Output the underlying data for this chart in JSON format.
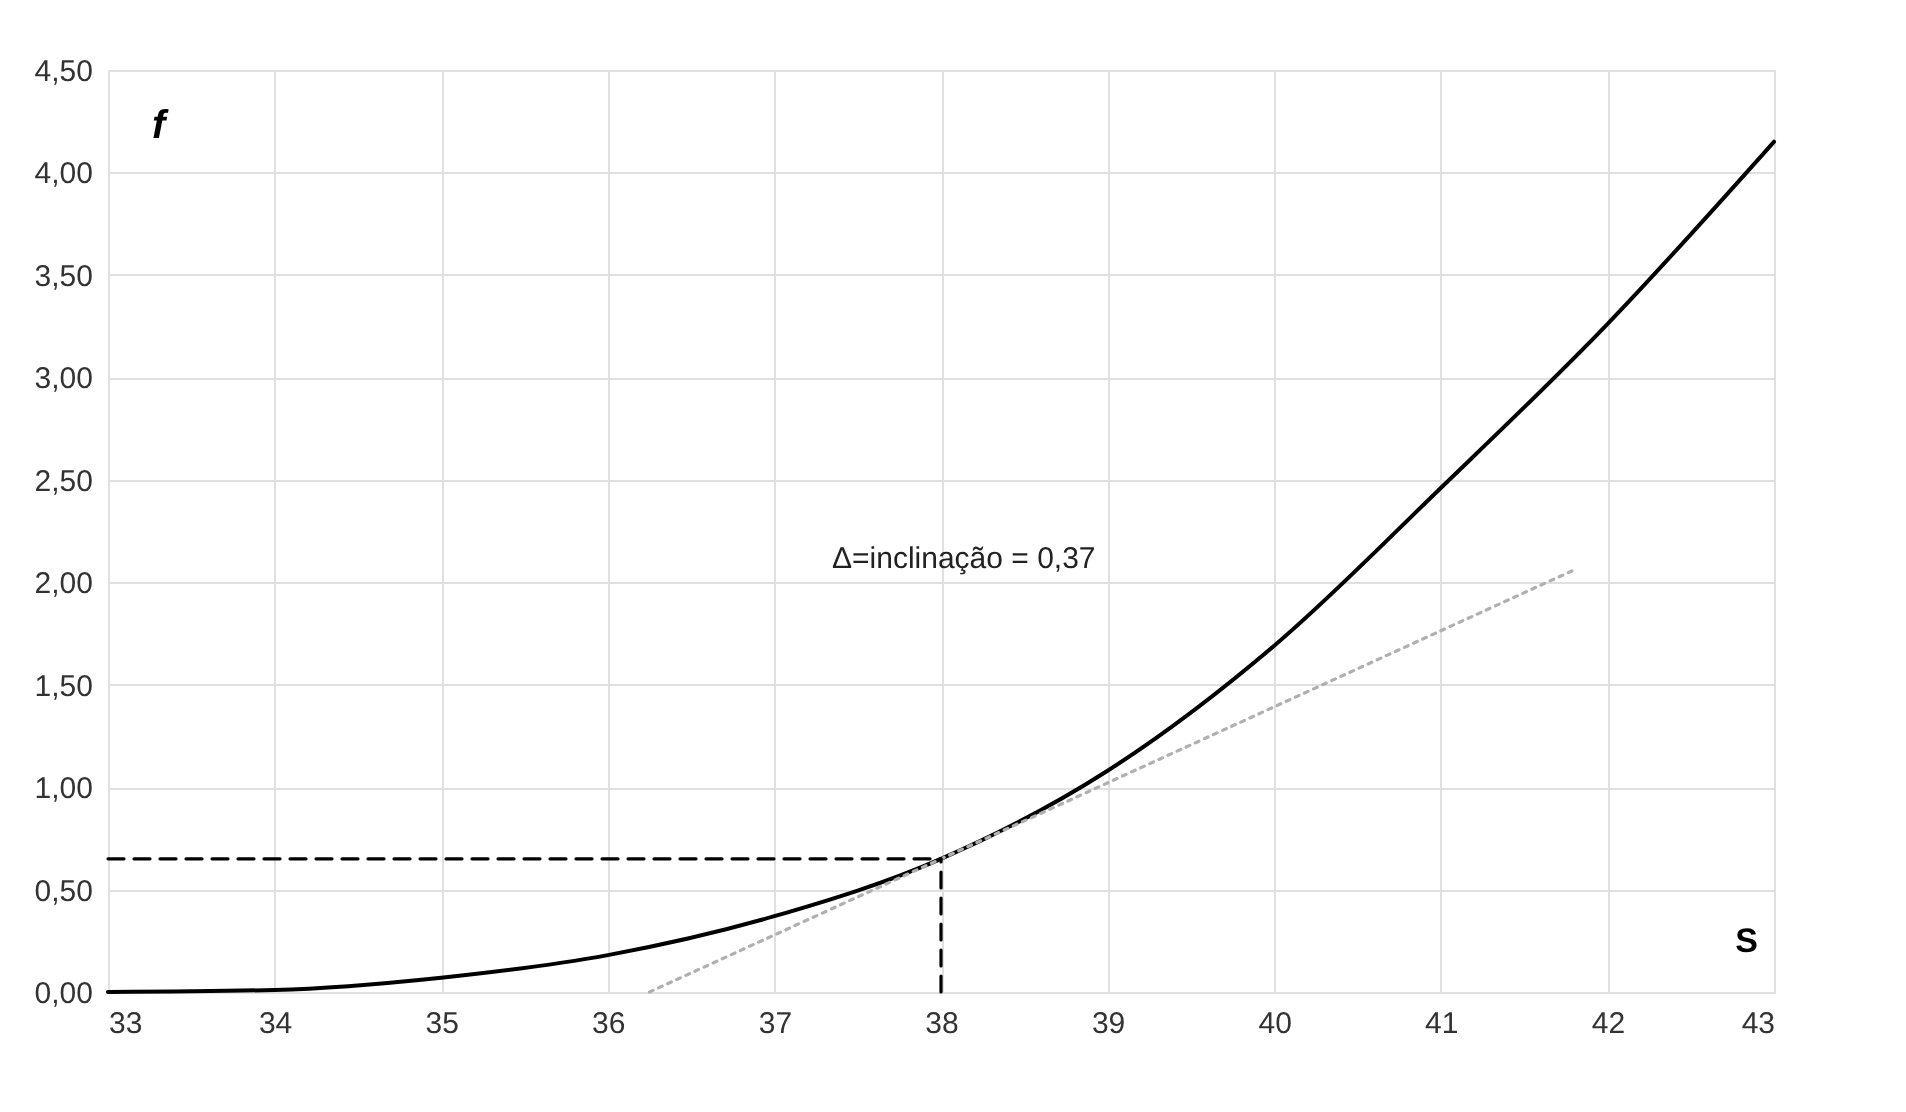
{
  "chart_data": {
    "type": "line",
    "xlabel": "S",
    "ylabel": "f",
    "xlim": [
      33,
      43
    ],
    "xticks": [
      33,
      34,
      35,
      36,
      37,
      38,
      39,
      40,
      41,
      42,
      43
    ],
    "ylim": [
      0,
      4.5
    ],
    "yticks": [
      {
        "value": 0,
        "label": "0,00"
      },
      {
        "value": 0.5,
        "label": "0,50"
      },
      {
        "value": 1,
        "label": "1,00"
      },
      {
        "value": 1.5,
        "label": "1,50"
      },
      {
        "value": 2,
        "label": "2,00"
      },
      {
        "value": 2.5,
        "label": "2,50"
      },
      {
        "value": 3,
        "label": "3,00"
      },
      {
        "value": 3.5,
        "label": "3,50"
      },
      {
        "value": 4,
        "label": "4,00"
      },
      {
        "value": 4.5,
        "label": "4,50"
      }
    ],
    "grid": true,
    "marker": "none",
    "series": [
      {
        "color": "#000000",
        "line_style": "solid",
        "x": [
          33,
          34,
          35,
          36,
          37,
          38,
          39,
          40,
          41,
          42,
          43
        ],
        "values": [
          0,
          0.01,
          0.07,
          0.18,
          0.37,
          0.65,
          1.08,
          1.69,
          2.46,
          3.26,
          4.15
        ]
      },
      {
        "color": "#b0b0b0",
        "line_style": "dotted",
        "x": [
          36.25,
          41.8
        ],
        "values": [
          0,
          2.06
        ]
      },
      {
        "color": "#000000",
        "line_style": "dashed",
        "x": [
          33,
          38
        ],
        "values": [
          0.65,
          0.65
        ]
      },
      {
        "color": "#000000",
        "line_style": "dashed",
        "x": [
          38,
          38
        ],
        "values": [
          0,
          0.65
        ]
      }
    ],
    "annotations": [
      "Δ=inclinação = 0,37"
    ]
  }
}
